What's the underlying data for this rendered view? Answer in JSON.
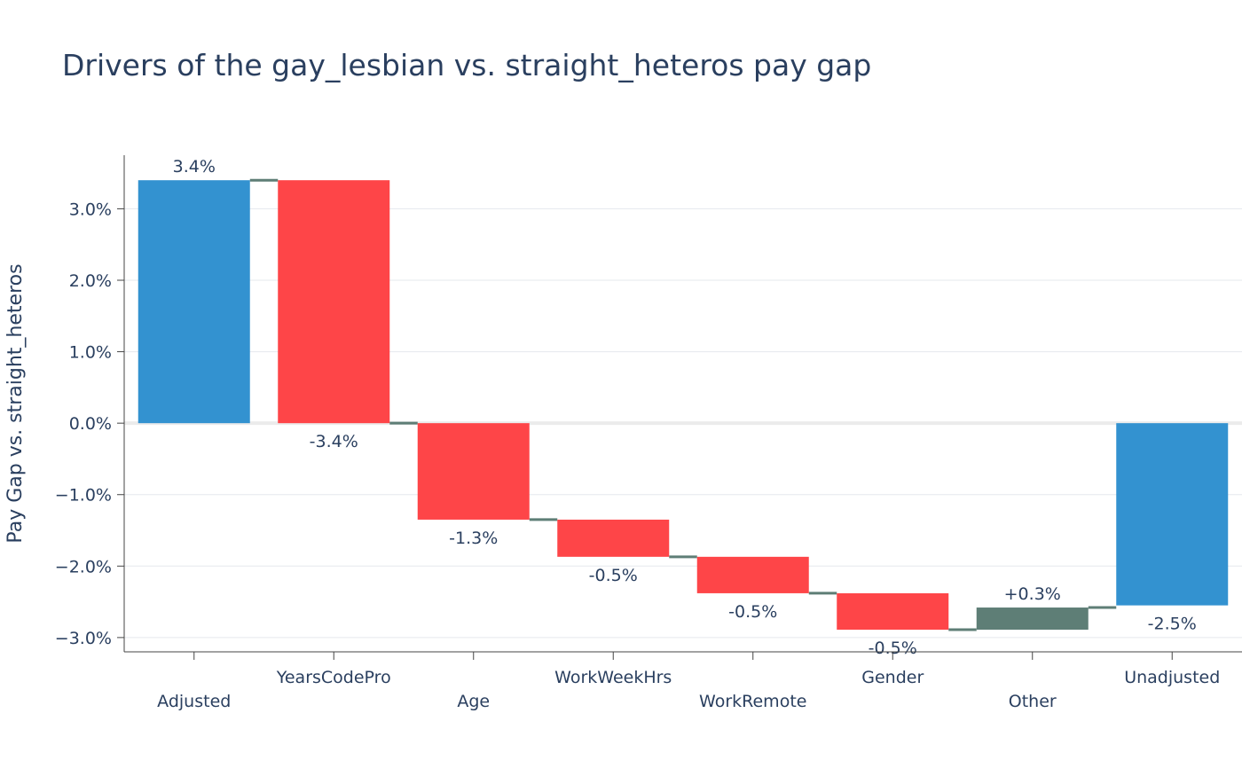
{
  "chart_data": {
    "type": "bar",
    "subtype": "waterfall",
    "title": "Drivers of the gay_lesbian vs. straight_heteros pay gap",
    "ylabel": "Pay Gap vs. straight_heteros",
    "xlabel": "",
    "ylim": [
      -3.2,
      3.75
    ],
    "yticks": [
      3.0,
      2.0,
      1.0,
      0.0,
      -1.0,
      -2.0,
      -3.0
    ],
    "ytick_labels": [
      "3.0%",
      "2.0%",
      "1.0%",
      "0.0%",
      "−1.0%",
      "−2.0%",
      "−3.0%"
    ],
    "grid": true,
    "categories": [
      "Adjusted",
      "YearsCodePro",
      "Age",
      "WorkWeekHrs",
      "WorkRemote",
      "Gender",
      "Other",
      "Unadjusted"
    ],
    "measures": [
      "absolute",
      "relative",
      "relative",
      "relative",
      "relative",
      "relative",
      "relative",
      "total"
    ],
    "values": [
      3.4,
      -3.4,
      -1.35,
      -0.52,
      -0.51,
      -0.51,
      0.31,
      -2.55
    ],
    "data_labels": [
      "3.4%",
      "-3.4%",
      "-1.3%",
      "-0.5%",
      "-0.5%",
      "-0.5%",
      "+0.3%",
      "-2.5%"
    ],
    "colors": {
      "total": "#3392d0",
      "decreasing": "#fe4548",
      "increasing": "#5e7e76",
      "connector": "#5e7e76",
      "text": "#2a3f5f",
      "grid": "#e5e8ee",
      "zero_line": "#ebebeb"
    }
  }
}
